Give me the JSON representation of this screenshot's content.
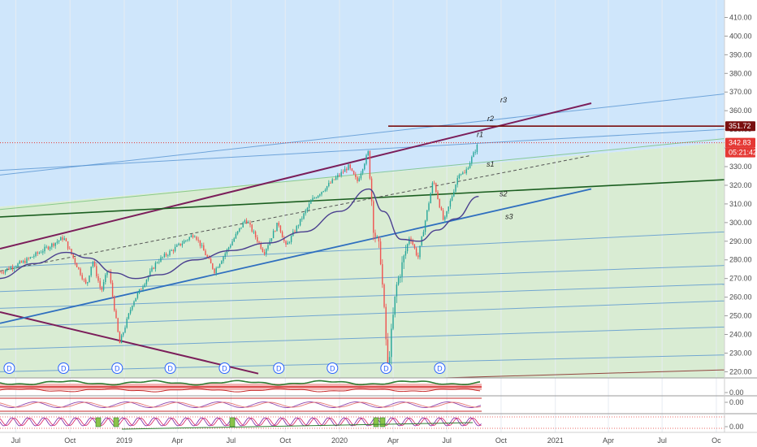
{
  "colors": {
    "upper_band": "#cfe6fb",
    "lower_band": "#d9ecd3",
    "candle_up": "#26a69a",
    "candle_down": "#ef5350",
    "moving_average": "#4a3f8f",
    "trend_purple": "#7b1e5a",
    "support_green": "#1b5e20",
    "fan_blue": "#4f8fcf",
    "resistance_dark_red": "#7a0f0f",
    "last_price_red": "#e53935"
  },
  "chart_data": {
    "type": "candlestick",
    "x_tick_labels": [
      "Jul",
      "Oct",
      "2019",
      "Apr",
      "Jul",
      "Oct",
      "2020",
      "Apr",
      "Jul",
      "Oct",
      "2021",
      "Apr",
      "Jul",
      "Oc"
    ],
    "y_axis": {
      "ylim": [
        218,
        415
      ],
      "tick_labels": [
        "220.00",
        "230.00",
        "240.00",
        "250.00",
        "260.00",
        "270.00",
        "280.00",
        "290.00",
        "300.00",
        "310.00",
        "320.00",
        "330.00",
        "340.00",
        "350.00",
        "360.00",
        "370.00",
        "380.00",
        "390.00",
        "400.00",
        "410.00"
      ]
    },
    "price_path": [
      {
        "date": "2018-06-01",
        "price": 273
      },
      {
        "date": "2018-07-15",
        "price": 279
      },
      {
        "date": "2018-09-20",
        "price": 292
      },
      {
        "date": "2018-10-29",
        "price": 266
      },
      {
        "date": "2018-11-08",
        "price": 280
      },
      {
        "date": "2018-11-23",
        "price": 263
      },
      {
        "date": "2018-12-05",
        "price": 276
      },
      {
        "date": "2018-12-24",
        "price": 235
      },
      {
        "date": "2019-01-15",
        "price": 257
      },
      {
        "date": "2019-02-25",
        "price": 279
      },
      {
        "date": "2019-04-30",
        "price": 294
      },
      {
        "date": "2019-06-03",
        "price": 274
      },
      {
        "date": "2019-07-26",
        "price": 302
      },
      {
        "date": "2019-08-26",
        "price": 284
      },
      {
        "date": "2019-09-19",
        "price": 300
      },
      {
        "date": "2019-10-02",
        "price": 287
      },
      {
        "date": "2019-11-15",
        "price": 312
      },
      {
        "date": "2020-01-16",
        "price": 330
      },
      {
        "date": "2020-01-31",
        "price": 322
      },
      {
        "date": "2020-02-19",
        "price": 338
      },
      {
        "date": "2020-02-28",
        "price": 296
      },
      {
        "date": "2020-03-10",
        "price": 284
      },
      {
        "date": "2020-03-23",
        "price": 222
      },
      {
        "date": "2020-04-06",
        "price": 265
      },
      {
        "date": "2020-04-29",
        "price": 293
      },
      {
        "date": "2020-05-13",
        "price": 281
      },
      {
        "date": "2020-06-08",
        "price": 323
      },
      {
        "date": "2020-06-26",
        "price": 300
      },
      {
        "date": "2020-07-22",
        "price": 327
      },
      {
        "date": "2020-07-31",
        "price": 326
      },
      {
        "date": "2020-08-20",
        "price": 340
      },
      {
        "date": "2020-08-24",
        "price": 342.83
      }
    ],
    "moving_average": [
      {
        "date": "2018-06-01",
        "price": 270
      },
      {
        "date": "2018-08-01",
        "price": 278
      },
      {
        "date": "2018-09-25",
        "price": 284
      },
      {
        "date": "2018-11-01",
        "price": 281
      },
      {
        "date": "2018-12-15",
        "price": 273
      },
      {
        "date": "2019-01-20",
        "price": 270
      },
      {
        "date": "2019-03-01",
        "price": 272
      },
      {
        "date": "2019-05-01",
        "price": 280
      },
      {
        "date": "2019-07-01",
        "price": 285
      },
      {
        "date": "2019-09-01",
        "price": 289
      },
      {
        "date": "2019-11-01",
        "price": 295
      },
      {
        "date": "2020-01-01",
        "price": 306
      },
      {
        "date": "2020-02-20",
        "price": 318
      },
      {
        "date": "2020-03-15",
        "price": 306
      },
      {
        "date": "2020-04-15",
        "price": 291
      },
      {
        "date": "2020-05-15",
        "price": 290
      },
      {
        "date": "2020-06-15",
        "price": 296
      },
      {
        "date": "2020-07-15",
        "price": 302
      },
      {
        "date": "2020-08-24",
        "price": 314
      }
    ],
    "level_labels": [
      "r3",
      "r2",
      "r1",
      "s1",
      "s2",
      "s3"
    ],
    "price_tags": [
      {
        "value": "351.72",
        "color": "#7a0f0f"
      },
      {
        "value": "342.83",
        "color": "#e53935"
      },
      {
        "value": "05:21:42",
        "color": "#e53935"
      }
    ],
    "event_markers": {
      "label": "D",
      "dates": [
        "2018-06-20",
        "2018-09-20",
        "2018-12-20",
        "2019-03-20",
        "2019-06-20",
        "2019-09-20",
        "2019-12-20",
        "2020-03-20",
        "2020-06-19"
      ]
    },
    "indicator_panes": [
      {
        "value_label": ""
      },
      {
        "value_label": "0.00"
      },
      {
        "value_label": "0.00"
      },
      {
        "value_label": "0.00"
      }
    ],
    "grid": true
  }
}
